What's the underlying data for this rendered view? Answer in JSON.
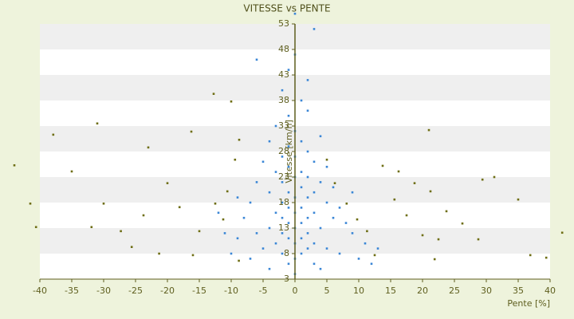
{
  "chart_data": {
    "type": "scatter",
    "title": "VITESSE vs PENTE",
    "xlabel": "Pente [%]",
    "ylabel": "Vitesse [km/h]",
    "xlim": [
      -40,
      40
    ],
    "xticks": [
      -40,
      -35,
      -30,
      -25,
      -20,
      -15,
      -10,
      -5,
      0,
      5,
      10,
      15,
      20,
      25,
      30,
      35,
      40
    ],
    "ylim": [
      3,
      53
    ],
    "yticks": [
      3,
      8,
      13,
      18,
      23,
      28,
      33,
      38,
      43,
      48,
      53
    ],
    "grid": true,
    "series": [
      {
        "color": "#6e6e14",
        "x": [
          -44,
          -37.9,
          -31,
          -12.75,
          -10,
          21,
          41.9,
          39.4,
          36.9,
          -40.6,
          -41.5,
          -27.3,
          -21.3,
          -16,
          -8.8,
          12.5,
          21.9,
          -8.75,
          -15,
          5,
          11.3,
          -16.25,
          -23,
          -35,
          29.4,
          31.25,
          35,
          13.75,
          16.25,
          18.75,
          21.25,
          23.75,
          26.25,
          28.75,
          -20,
          -18.1,
          -23.75,
          -30,
          -31.9,
          -25.6,
          -11.25,
          -12.5,
          -10.6,
          -9.4,
          6.25,
          8.1,
          9.75,
          15.6,
          17.5,
          20,
          22.5
        ],
        "values": [
          25.3,
          31.3,
          33.5,
          39.3,
          37.8,
          32.2,
          12.1,
          7.2,
          7.7,
          13.2,
          17.8,
          12.4,
          8,
          7.7,
          6.6,
          7.7,
          6.9,
          30.3,
          12.4,
          26.4,
          12.4,
          31.9,
          28.8,
          24.1,
          22.5,
          23,
          18.6,
          25.2,
          24.1,
          21.8,
          20.2,
          16.3,
          13.9,
          10.8,
          21.8,
          17.1,
          15.5,
          17.8,
          13.2,
          9.3,
          14.7,
          17.8,
          20.2,
          26.4,
          21.8,
          17.8,
          14.7,
          18.6,
          15.5,
          11.6,
          10.8
        ]
      },
      {
        "color": "#3a86d6",
        "x": [
          0,
          3,
          -6,
          0,
          -2,
          1,
          -1,
          2,
          -3,
          0,
          4,
          -4,
          1,
          -1,
          2,
          -2,
          0,
          3,
          -5,
          5,
          -1,
          1,
          -3,
          2,
          0,
          -2,
          4,
          -6,
          6,
          1,
          -1,
          3,
          -4,
          0,
          2,
          -2,
          5,
          -7,
          7,
          1,
          -1,
          -3,
          3,
          0,
          2,
          -2,
          6,
          -8,
          8,
          1,
          -1,
          -4,
          4,
          0,
          2,
          -2,
          -6,
          9,
          -9,
          1,
          -1,
          3,
          -3,
          0,
          5,
          -5,
          2,
          -2,
          1,
          7,
          -7,
          0,
          3,
          -1,
          10,
          -10,
          12,
          -4,
          4,
          11,
          -11,
          9,
          -9,
          0,
          2,
          -1,
          13,
          -12
        ],
        "values": [
          55,
          52,
          46,
          47,
          40,
          38,
          35,
          36,
          33,
          32,
          31,
          30,
          30,
          29,
          28,
          27,
          27,
          26,
          26,
          25,
          25,
          24,
          24,
          23,
          23,
          22,
          22,
          22,
          21,
          21,
          20,
          20,
          20,
          19,
          19,
          18,
          18,
          18,
          17,
          17,
          17,
          16,
          16,
          16,
          15,
          15,
          15,
          15,
          14,
          14,
          14,
          13,
          13,
          13,
          12,
          12,
          12,
          12,
          11,
          11,
          11,
          10,
          10,
          10,
          9,
          9,
          9,
          8,
          8,
          8,
          7,
          7,
          6,
          6,
          7,
          8,
          6,
          5,
          5,
          10,
          12,
          20,
          19,
          4,
          42,
          44,
          9,
          16
        ]
      }
    ]
  }
}
